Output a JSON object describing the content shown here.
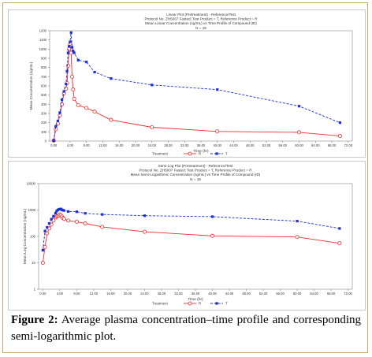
{
  "figure": {
    "caption_label": "Figure 2:",
    "caption_text": "Average plasma concentration–time profile and corresponding semi-logarithmic plot."
  },
  "colors": {
    "reference": "#ee2b2b",
    "test": "#1a2fd8",
    "frame": "#c8a860"
  },
  "chart_data": [
    {
      "type": "line",
      "title_lines": [
        "Linear Plot (Pretreatment) - Reference/Test",
        "Protocol No. ZH5007 Fasted; Test Product = T, Reference Product = R",
        "Mean Linear Concentration (ng/mL) vs Time Profile of Compound (ID)",
        "N = 18"
      ],
      "xlabel": "Time (hr)",
      "ylabel": "Mean Concentration (ng/mL)",
      "legend": {
        "title": "Treatment",
        "placement": "bottom-center"
      },
      "grid": false,
      "xlim": [
        -1,
        73
      ],
      "ylim": [
        0,
        1200
      ],
      "x_ticks": [
        "0.00",
        "4.00",
        "8.00",
        "12.00",
        "16.00",
        "20.00",
        "24.00",
        "28.00",
        "32.00",
        "36.00",
        "40.00",
        "44.00",
        "48.00",
        "52.00",
        "56.00",
        "60.00",
        "64.00",
        "68.00",
        "72.00"
      ],
      "y_ticks": [
        "0",
        "100",
        "200",
        "300",
        "400",
        "500",
        "600",
        "700",
        "800",
        "900",
        "1000",
        "1100",
        "1200"
      ],
      "series": [
        {
          "name": "R",
          "x": [
            0,
            0.5,
            1,
            1.5,
            2,
            2.5,
            3,
            3.25,
            3.5,
            3.75,
            4,
            4.25,
            4.5,
            4.75,
            5,
            6,
            8,
            10,
            14,
            24,
            40,
            60,
            70
          ],
          "y": [
            5,
            130,
            190,
            280,
            400,
            520,
            570,
            630,
            820,
            1000,
            1060,
            960,
            700,
            560,
            460,
            390,
            360,
            320,
            230,
            150,
            105,
            95,
            55
          ]
        },
        {
          "name": "T",
          "x": [
            0,
            0.5,
            1,
            1.5,
            2,
            2.5,
            3,
            3.25,
            3.5,
            3.75,
            4,
            4.25,
            4.5,
            4.75,
            5,
            6,
            8,
            10,
            14,
            24,
            40,
            60,
            70
          ],
          "y": [
            5,
            160,
            220,
            310,
            450,
            540,
            620,
            760,
            960,
            1030,
            1080,
            1180,
            1020,
            980,
            960,
            880,
            860,
            750,
            680,
            610,
            560,
            380,
            200
          ]
        }
      ]
    },
    {
      "type": "line",
      "title_lines": [
        "Semi-Log Plot (Pretreatment) - Reference/Test",
        "Protocol No. ZH5007 Fasted; Test Product = T, Reference Product = R",
        "Mean Semi-Logarithmic Concentration (ng/mL) vs Time Profile of Compound (ID)",
        "N = 18"
      ],
      "xlabel": "Time (hr)",
      "ylabel": "Mean Log Concentration (ng/mL)",
      "legend": {
        "title": "Treatment",
        "placement": "bottom-center"
      },
      "grid": false,
      "log_scale": "y",
      "xlim": [
        -1,
        73
      ],
      "ylim": [
        1,
        10000
      ],
      "x_ticks": [
        "0.00",
        "4.00",
        "8.00",
        "12.00",
        "16.00",
        "20.00",
        "24.00",
        "28.00",
        "32.00",
        "36.00",
        "40.00",
        "44.00",
        "48.00",
        "52.00",
        "56.00",
        "60.00",
        "64.00",
        "68.00",
        "72.00"
      ],
      "y_ticks": [
        "1",
        "10",
        "100",
        "1000",
        "10000"
      ],
      "series": [
        {
          "name": "R",
          "x": [
            0,
            0.5,
            1,
            1.5,
            2,
            2.5,
            3,
            3.25,
            3.5,
            3.75,
            4,
            4.25,
            4.5,
            4.75,
            5,
            6,
            8,
            10,
            14,
            24,
            40,
            60,
            70
          ],
          "y": [
            10,
            40,
            130,
            200,
            280,
            400,
            520,
            560,
            600,
            620,
            680,
            640,
            560,
            500,
            460,
            400,
            360,
            310,
            230,
            150,
            105,
            95,
            55
          ]
        },
        {
          "name": "T",
          "x": [
            0,
            0.5,
            1,
            1.5,
            2,
            2.5,
            3,
            3.25,
            3.5,
            3.75,
            4,
            4.25,
            4.5,
            4.75,
            5,
            6,
            8,
            10,
            14,
            24,
            40,
            60,
            70
          ],
          "y": [
            30,
            160,
            220,
            310,
            450,
            580,
            760,
            900,
            1000,
            1050,
            1080,
            1100,
            1020,
            980,
            960,
            880,
            860,
            750,
            680,
            610,
            560,
            380,
            200
          ]
        }
      ]
    }
  ]
}
